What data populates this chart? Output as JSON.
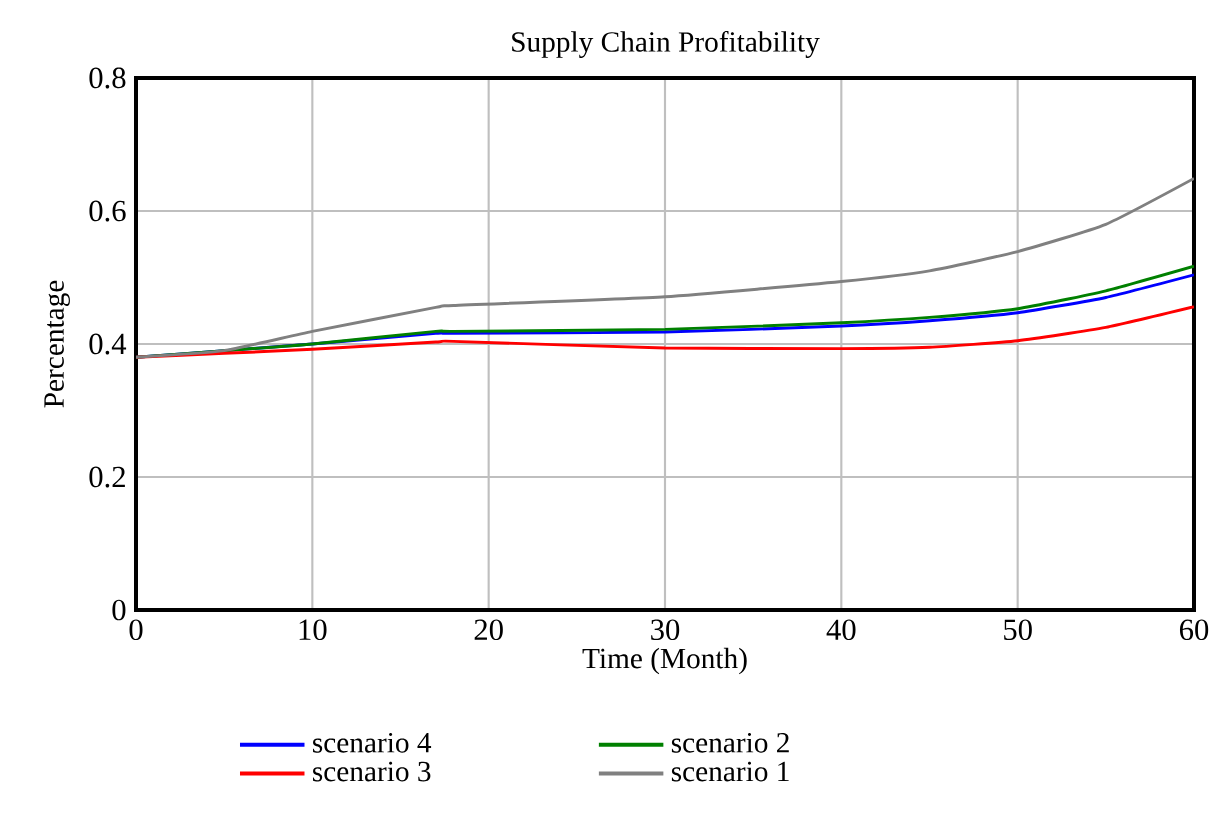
{
  "chart_data": {
    "type": "line",
    "title": "Supply Chain Profitability",
    "xlabel": "Time (Month)",
    "ylabel": "Percentage",
    "xlim": [
      0,
      60
    ],
    "ylim": [
      0,
      0.8
    ],
    "xticks": [
      0,
      10,
      20,
      30,
      40,
      50,
      60
    ],
    "yticks": [
      0,
      0.2,
      0.4,
      0.6,
      0.8
    ],
    "grid": true,
    "legend": "bottom",
    "line_style": "solid",
    "series": [
      {
        "name": "scenario 4",
        "color": "#0000ff",
        "x": [
          0,
          5,
          10,
          17,
          18,
          30,
          40,
          45,
          50,
          55,
          60
        ],
        "values": [
          0.38,
          0.39,
          0.4,
          0.416,
          0.416,
          0.418,
          0.427,
          0.435,
          0.447,
          0.47,
          0.504
        ]
      },
      {
        "name": "scenario 2",
        "color": "#008000",
        "x": [
          0,
          5,
          10,
          17,
          18,
          30,
          40,
          45,
          50,
          55,
          60
        ],
        "values": [
          0.38,
          0.39,
          0.4,
          0.419,
          0.419,
          0.422,
          0.432,
          0.44,
          0.453,
          0.48,
          0.517
        ]
      },
      {
        "name": "scenario 3",
        "color": "#ff0000",
        "x": [
          0,
          5,
          10,
          17,
          18,
          30,
          40,
          45,
          50,
          55,
          60
        ],
        "values": [
          0.38,
          0.386,
          0.392,
          0.403,
          0.404,
          0.394,
          0.393,
          0.395,
          0.405,
          0.425,
          0.456
        ]
      },
      {
        "name": "scenario 1",
        "color": "#808080",
        "x": [
          0,
          5,
          10,
          17,
          18,
          30,
          40,
          45,
          50,
          55,
          60
        ],
        "values": [
          0.38,
          0.39,
          0.419,
          0.455,
          0.458,
          0.471,
          0.494,
          0.51,
          0.539,
          0.58,
          0.649
        ]
      }
    ]
  }
}
